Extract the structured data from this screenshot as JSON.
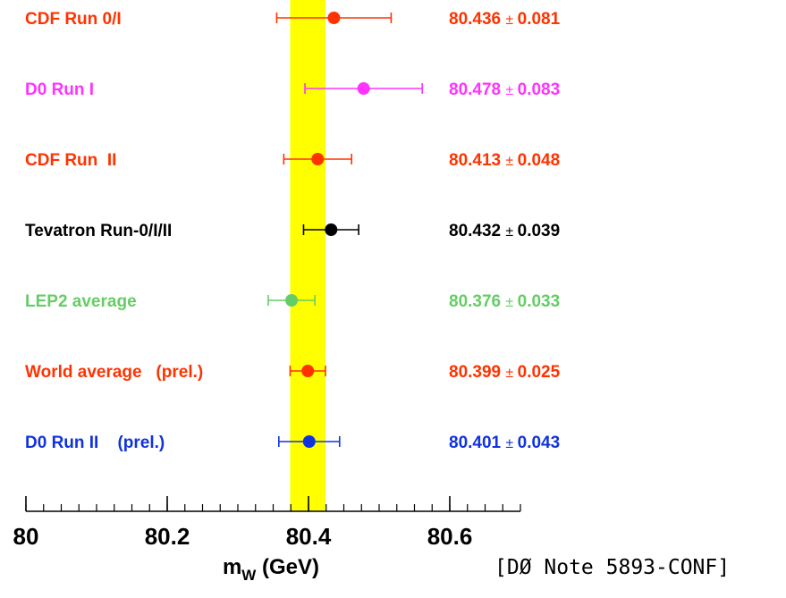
{
  "chart_data": {
    "type": "scatter",
    "title": "",
    "xlabel_main": "m",
    "xlabel_sub": "W",
    "xlabel_unit": " (GeV)",
    "xlim": [
      80.0,
      80.7
    ],
    "xticks": [
      80.0,
      80.2,
      80.4,
      80.6
    ],
    "xtick_labels": [
      "80",
      "80.2",
      "80.4",
      "80.6"
    ],
    "band": {
      "low": 80.374,
      "high": 80.424,
      "color": "#ffff00"
    },
    "pm_symbol": "±",
    "series": [
      {
        "name": "CDF Run 0/I",
        "value": 80.436,
        "error": 0.081,
        "value_text": "80.436",
        "error_text": "0.081",
        "color": "#ff3300"
      },
      {
        "name": "D0 Run I",
        "value": 80.478,
        "error": 0.083,
        "value_text": "80.478",
        "error_text": "0.083",
        "color": "#ff33ff"
      },
      {
        "name": "CDF Run  II",
        "value": 80.413,
        "error": 0.048,
        "value_text": "80.413",
        "error_text": "0.048",
        "color": "#ff3300"
      },
      {
        "name": "Tevatron Run-0/I/II",
        "value": 80.432,
        "error": 0.039,
        "value_text": "80.432",
        "error_text": "0.039",
        "color": "#000000"
      },
      {
        "name": "LEP2 average",
        "value": 80.376,
        "error": 0.033,
        "value_text": "80.376",
        "error_text": "0.033",
        "color": "#66cc66"
      },
      {
        "name": "World average   (prel.)",
        "value": 80.399,
        "error": 0.025,
        "value_text": "80.399",
        "error_text": "0.025",
        "color": "#ff3300"
      },
      {
        "name": "D0 Run II    (prel.)",
        "value": 80.401,
        "error": 0.043,
        "value_text": "80.401",
        "error_text": "0.043",
        "color": "#1133dd"
      }
    ]
  },
  "footnote": "[DØ Note 5893-CONF]"
}
